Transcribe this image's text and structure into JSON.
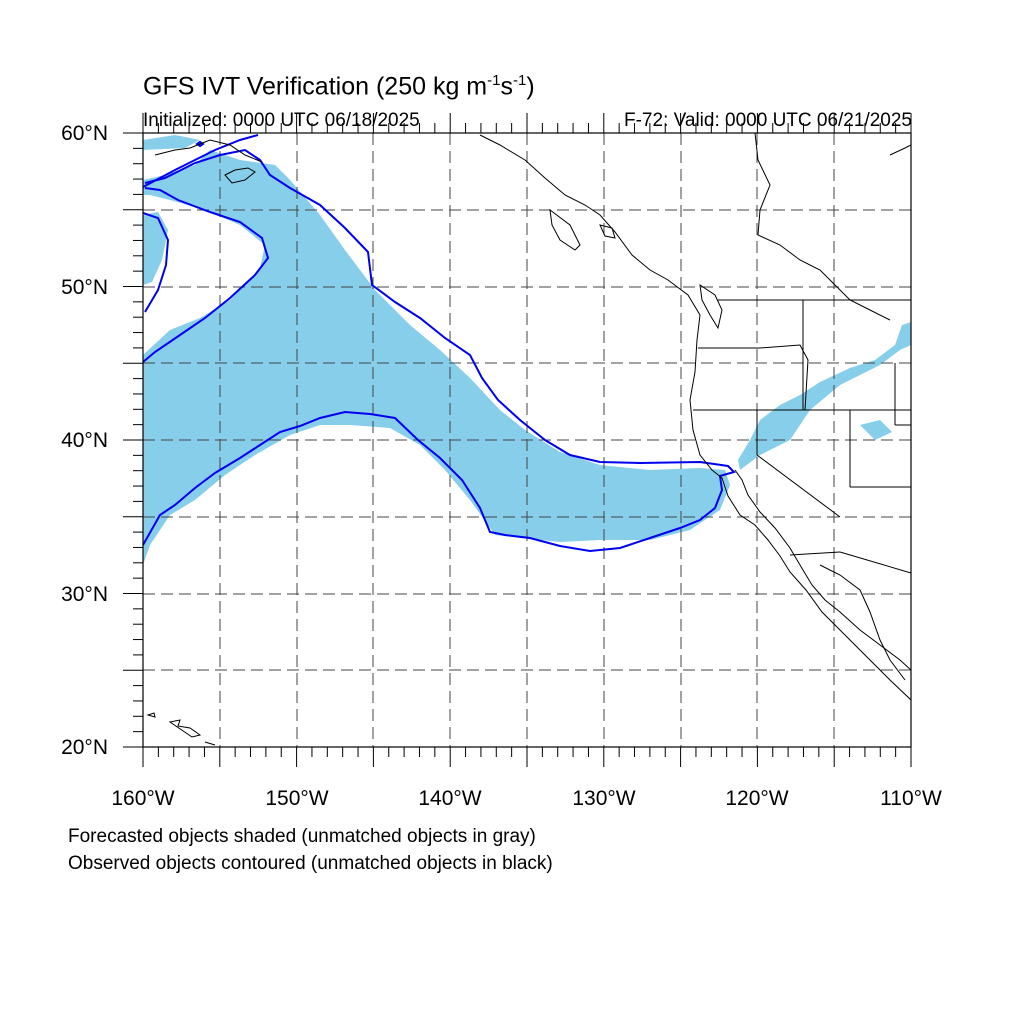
{
  "title": {
    "main": "GFS IVT Verification (250 kg m",
    "sup1": "-1",
    "mid": "s",
    "sup2": "-1",
    "end": ")"
  },
  "initialized": "Initialized: 0000 UTC 06/18/2025",
  "valid": "F-72: Valid: 0000 UTC 06/21/2025",
  "notes": [
    "Forecasted objects shaded (unmatched objects in gray)",
    "Observed objects contoured (unmatched objects in black)"
  ],
  "map": {
    "lon_range": [
      -160,
      -110
    ],
    "lat_range": [
      20,
      60
    ],
    "lat_labels": [
      "20°N",
      "30°N",
      "40°N",
      "50°N",
      "60°N"
    ],
    "lon_labels": [
      "160°W",
      "150°W",
      "140°W",
      "130°W",
      "120°W",
      "110°W"
    ],
    "grid": "dashed every 5°",
    "colors": {
      "forecast_fill": "#87ceeb",
      "observed_contour": "#0000ee",
      "coastline": "#000000"
    }
  }
}
